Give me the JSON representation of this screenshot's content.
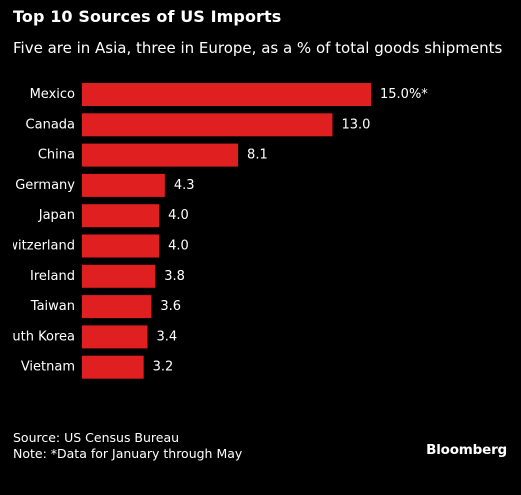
{
  "header": {
    "title": "Top 10 Sources of US Imports",
    "subtitle": "Five are in Asia, three in Europe, as a % of total goods shipments"
  },
  "footer": {
    "source": "Source: US Census Bureau",
    "note": "Note: *Data for January through May"
  },
  "brand": "Bloomberg",
  "colors": {
    "background": "#000000",
    "bar": "#e02020",
    "text": "#ffffff"
  },
  "chart_data": {
    "type": "bar",
    "orientation": "horizontal",
    "categories": [
      "Mexico",
      "Canada",
      "China",
      "Germany",
      "Japan",
      "Switzerland",
      "Ireland",
      "Taiwan",
      "South Korea",
      "Vietnam"
    ],
    "values": [
      15.0,
      13.0,
      8.1,
      4.3,
      4.0,
      4.0,
      3.8,
      3.6,
      3.4,
      3.2
    ],
    "value_labels": [
      "15.0%*",
      "13.0",
      "8.1",
      "4.3",
      "4.0",
      "4.0",
      "3.8",
      "3.6",
      "3.4",
      "3.2"
    ],
    "title": "Top 10 Sources of US Imports",
    "subtitle": "Five are in Asia, three in Europe, as a % of total goods shipments",
    "xlabel": "",
    "ylabel": "",
    "xlim": [
      0,
      15.0
    ],
    "grid": false,
    "legend": "none"
  }
}
